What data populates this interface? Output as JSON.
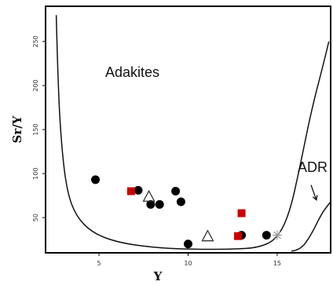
{
  "chart_data": {
    "type": "scatter",
    "title": "",
    "xlabel": "Y",
    "ylabel": "Sr/Y",
    "xlim": [
      2,
      18
    ],
    "ylim": [
      10,
      290
    ],
    "xticks": [
      5,
      10,
      15
    ],
    "yticks": [
      50,
      100,
      150,
      200,
      250
    ],
    "grid": false,
    "region_labels": {
      "adakites": "Adakites",
      "adr": "ADR"
    },
    "series": [
      {
        "marker": "filled-circle",
        "color": "#000000",
        "points": [
          {
            "x": 4.8,
            "y": 93
          },
          {
            "x": 7.2,
            "y": 81
          },
          {
            "x": 7.9,
            "y": 65
          },
          {
            "x": 8.4,
            "y": 65
          },
          {
            "x": 9.3,
            "y": 80
          },
          {
            "x": 9.6,
            "y": 68
          },
          {
            "x": 10.0,
            "y": 20
          },
          {
            "x": 13.0,
            "y": 30
          },
          {
            "x": 14.4,
            "y": 30
          }
        ]
      },
      {
        "marker": "filled-square",
        "color": "#cc0000",
        "points": [
          {
            "x": 6.8,
            "y": 80
          },
          {
            "x": 13.0,
            "y": 55
          },
          {
            "x": 12.8,
            "y": 29
          }
        ]
      },
      {
        "marker": "open-triangle",
        "color": "#333333",
        "points": [
          {
            "x": 7.8,
            "y": 74
          },
          {
            "x": 11.1,
            "y": 29
          }
        ]
      },
      {
        "marker": "star",
        "color": "#999999",
        "points": [
          {
            "x": 15.0,
            "y": 30
          }
        ]
      }
    ],
    "boundaries": {
      "adakite_field": [
        [
          2.6,
          280
        ],
        [
          2.7,
          200
        ],
        [
          2.9,
          130
        ],
        [
          3.2,
          80
        ],
        [
          3.7,
          52
        ],
        [
          4.6,
          33
        ],
        [
          6.0,
          22
        ],
        [
          8.0,
          16
        ],
        [
          10.0,
          14
        ],
        [
          12.5,
          14
        ],
        [
          14.0,
          16
        ],
        [
          15.0,
          26
        ],
        [
          15.7,
          55
        ],
        [
          16.3,
          110
        ],
        [
          16.9,
          170
        ],
        [
          17.6,
          225
        ],
        [
          17.9,
          250
        ]
      ],
      "adr_field": [
        [
          15.8,
          12
        ],
        [
          16.3,
          13
        ],
        [
          16.9,
          30
        ],
        [
          17.5,
          55
        ],
        [
          18.0,
          68
        ]
      ]
    },
    "annotations": {
      "adr_arrow": {
        "from": [
          16.9,
          87
        ],
        "to": [
          17.2,
          70
        ]
      }
    }
  }
}
